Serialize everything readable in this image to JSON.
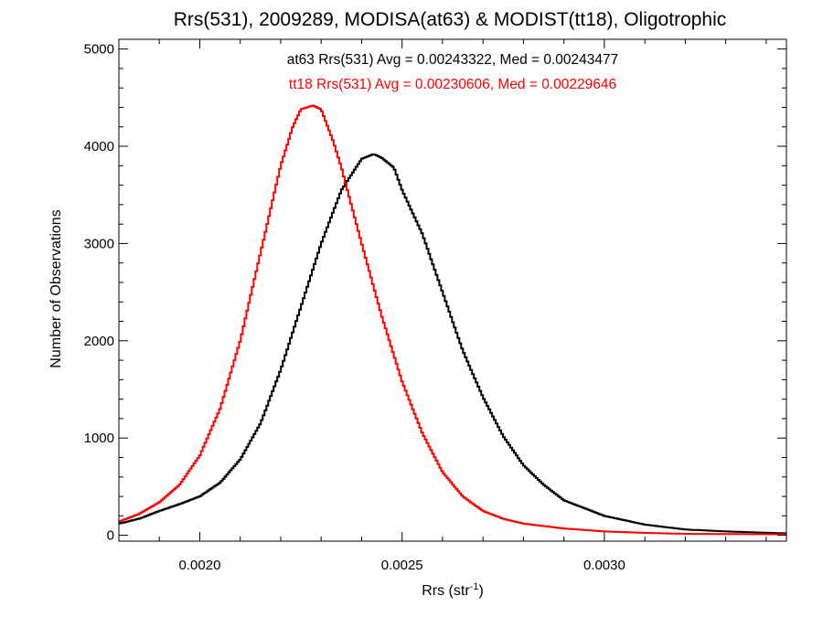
{
  "chart_data": {
    "type": "line",
    "step": true,
    "title": "Rrs(531), 2009289, MODISA(at63) & MODIST(tt18), Oligotrophic",
    "xlabel_main": "Rrs (str",
    "xlabel_sup": "-1",
    "xlabel_close": ")",
    "ylabel": "Number of Observations",
    "xlim": [
      0.0018,
      0.00345
    ],
    "ylim": [
      -60,
      5100
    ],
    "x_ticks": [
      {
        "value": 0.002,
        "label": "0.0020"
      },
      {
        "value": 0.0025,
        "label": "0.0025"
      },
      {
        "value": 0.003,
        "label": "0.0030"
      }
    ],
    "x_minor_step": 0.0001,
    "y_ticks": [
      {
        "value": 0,
        "label": "0"
      },
      {
        "value": 1000,
        "label": "1000"
      },
      {
        "value": 2000,
        "label": "2000"
      },
      {
        "value": 3000,
        "label": "3000"
      },
      {
        "value": 4000,
        "label": "4000"
      },
      {
        "value": 5000,
        "label": "5000"
      }
    ],
    "y_minor_step": 200,
    "annotations": [
      {
        "text": "at63 Rrs(531) Avg = 0.00243322, Med = 0.00243477",
        "color": "#000000"
      },
      {
        "text": "tt18 Rrs(531) Avg = 0.00230606, Med = 0.00229646",
        "color": "#ff0000"
      }
    ],
    "series": [
      {
        "color": "#000000",
        "x": [
          0.0018,
          0.00185,
          0.0019,
          0.00195,
          0.002,
          0.00205,
          0.0021,
          0.00215,
          0.0022,
          0.00225,
          0.0023,
          0.00235,
          0.0024,
          0.00243,
          0.00245,
          0.00248,
          0.0025,
          0.00255,
          0.0026,
          0.00265,
          0.0027,
          0.00275,
          0.0028,
          0.00285,
          0.0029,
          0.003,
          0.0031,
          0.0032,
          0.0033,
          0.00345
        ],
        "y": [
          120,
          170,
          250,
          320,
          400,
          540,
          780,
          1150,
          1700,
          2350,
          3000,
          3550,
          3870,
          3920,
          3880,
          3780,
          3550,
          3100,
          2500,
          1900,
          1420,
          1020,
          720,
          520,
          360,
          200,
          110,
          60,
          40,
          20
        ]
      },
      {
        "color": "#ff0000",
        "x": [
          0.0018,
          0.00185,
          0.0019,
          0.00195,
          0.002,
          0.00205,
          0.0021,
          0.00215,
          0.0022,
          0.00223,
          0.00225,
          0.00228,
          0.0023,
          0.00233,
          0.00235,
          0.0024,
          0.00245,
          0.0025,
          0.00255,
          0.0026,
          0.00265,
          0.0027,
          0.00275,
          0.0028,
          0.0029,
          0.003,
          0.0031,
          0.0032,
          0.00345
        ],
        "y": [
          140,
          220,
          340,
          520,
          820,
          1300,
          2000,
          2900,
          3800,
          4200,
          4380,
          4420,
          4380,
          4050,
          3780,
          3000,
          2250,
          1580,
          1050,
          650,
          400,
          250,
          170,
          120,
          70,
          40,
          25,
          15,
          10
        ]
      }
    ]
  }
}
